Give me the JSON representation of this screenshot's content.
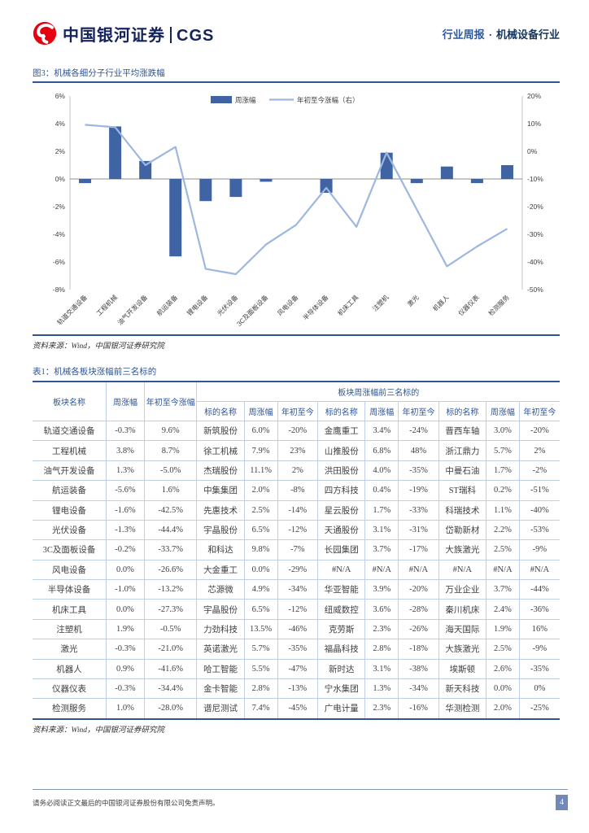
{
  "header": {
    "logo_text": "中国银河证券",
    "logo_suffix": "CGS",
    "report_type": "行业周报",
    "separator": "·",
    "industry": "机械设备行业"
  },
  "figure": {
    "title": "图3：机械各细分子行业平均涨跌幅",
    "source": "资料来源：Wind，中国银河证券研究院"
  },
  "chart_data": {
    "type": "bar",
    "categories": [
      "轨道交通设备",
      "工程机械",
      "油气开发设备",
      "航运装备",
      "锂电设备",
      "光伏设备",
      "3C及面板设备",
      "风电设备",
      "半导体设备",
      "机床工具",
      "注塑机",
      "激光",
      "机器人",
      "仪器仪表",
      "检测服务"
    ],
    "series": [
      {
        "name": "周涨幅",
        "type": "bar",
        "axis": "left",
        "values": [
          -0.3,
          3.8,
          1.3,
          -5.6,
          -1.6,
          -1.3,
          -0.2,
          0.0,
          -1.0,
          0.0,
          1.9,
          -0.3,
          0.9,
          -0.3,
          1.0
        ],
        "color": "#3f63a3"
      },
      {
        "name": "年初至今涨幅（右）",
        "type": "line",
        "axis": "right",
        "values": [
          9.6,
          8.7,
          -5.0,
          1.6,
          -42.5,
          -44.4,
          -33.7,
          -26.6,
          -13.2,
          -27.3,
          -0.5,
          -21.0,
          -41.6,
          -34.4,
          -28.0
        ],
        "color": "#9db7e0"
      }
    ],
    "title": "机械各细分子行业平均涨跌幅",
    "xlabel": "",
    "ylabel": "",
    "left_axis": {
      "min": -8,
      "max": 6,
      "step": 2,
      "suffix": "%"
    },
    "right_axis": {
      "min": -50,
      "max": 20,
      "step": 10,
      "suffix": "%"
    },
    "legend_position": "top",
    "grid": false
  },
  "table": {
    "title": "表1：机械各板块涨幅前三名标的",
    "source": "资料来源：Wind，中国银河证券研究院",
    "group_header": "板块周涨幅前三名标的",
    "col_headers": [
      "板块名称",
      "周涨幅",
      "年初至今涨幅"
    ],
    "sub_headers": [
      "标的名称",
      "周涨幅",
      "年初至今"
    ],
    "rows": [
      [
        "轨道交通设备",
        "-0.3%",
        "9.6%",
        "新筑股份",
        "6.0%",
        "-20%",
        "金鹰重工",
        "3.4%",
        "-24%",
        "晋西车轴",
        "3.0%",
        "-20%"
      ],
      [
        "工程机械",
        "3.8%",
        "8.7%",
        "徐工机械",
        "7.9%",
        "23%",
        "山推股份",
        "6.8%",
        "48%",
        "浙江鼎力",
        "5.7%",
        "2%"
      ],
      [
        "油气开发设备",
        "1.3%",
        "-5.0%",
        "杰瑞股份",
        "11.1%",
        "2%",
        "洪田股份",
        "4.0%",
        "-35%",
        "中曼石油",
        "1.7%",
        "-2%"
      ],
      [
        "航运装备",
        "-5.6%",
        "1.6%",
        "中集集团",
        "2.0%",
        "-8%",
        "四方科技",
        "0.4%",
        "-19%",
        "ST瑞科",
        "0.2%",
        "-51%"
      ],
      [
        "锂电设备",
        "-1.6%",
        "-42.5%",
        "先惠技术",
        "2.5%",
        "-14%",
        "星云股份",
        "1.7%",
        "-33%",
        "科瑞技术",
        "1.1%",
        "-40%"
      ],
      [
        "光伏设备",
        "-1.3%",
        "-44.4%",
        "宇晶股份",
        "6.5%",
        "-12%",
        "天通股份",
        "3.1%",
        "-31%",
        "岱勒新材",
        "2.2%",
        "-53%"
      ],
      [
        "3C及面板设备",
        "-0.2%",
        "-33.7%",
        "和科达",
        "9.8%",
        "-7%",
        "长园集团",
        "3.7%",
        "-17%",
        "大族激光",
        "2.5%",
        "-9%"
      ],
      [
        "风电设备",
        "0.0%",
        "-26.6%",
        "大金重工",
        "0.0%",
        "-29%",
        "#N/A",
        "#N/A",
        "#N/A",
        "#N/A",
        "#N/A",
        "#N/A"
      ],
      [
        "半导体设备",
        "-1.0%",
        "-13.2%",
        "芯源微",
        "4.9%",
        "-34%",
        "华亚智能",
        "3.9%",
        "-20%",
        "万业企业",
        "3.7%",
        "-44%"
      ],
      [
        "机床工具",
        "0.0%",
        "-27.3%",
        "宇晶股份",
        "6.5%",
        "-12%",
        "纽威数控",
        "3.6%",
        "-28%",
        "秦川机床",
        "2.4%",
        "-36%"
      ],
      [
        "注塑机",
        "1.9%",
        "-0.5%",
        "力劲科技",
        "13.5%",
        "-46%",
        "克劳斯",
        "2.3%",
        "-26%",
        "海天国际",
        "1.9%",
        "16%"
      ],
      [
        "激光",
        "-0.3%",
        "-21.0%",
        "英诺激光",
        "5.7%",
        "-35%",
        "福晶科技",
        "2.8%",
        "-18%",
        "大族激光",
        "2.5%",
        "-9%"
      ],
      [
        "机器人",
        "0.9%",
        "-41.6%",
        "哈工智能",
        "5.5%",
        "-47%",
        "新时达",
        "3.1%",
        "-38%",
        "埃斯顿",
        "2.6%",
        "-35%"
      ],
      [
        "仪器仪表",
        "-0.3%",
        "-34.4%",
        "金卡智能",
        "2.8%",
        "-13%",
        "宁水集团",
        "1.3%",
        "-34%",
        "新天科技",
        "0.0%",
        "0%"
      ],
      [
        "检测服务",
        "1.0%",
        "-28.0%",
        "谱尼测试",
        "7.4%",
        "-45%",
        "广电计量",
        "2.3%",
        "-16%",
        "华测检测",
        "2.0%",
        "-25%"
      ]
    ]
  },
  "footer": {
    "disclaimer": "请务必阅读正文最后的中国银河证券股份有限公司免责声明。",
    "page_number": "4"
  },
  "colors": {
    "accent_blue": "#2f5597",
    "bar_blue": "#3f63a3",
    "line_blue": "#9db7e0",
    "logo_red": "#e60012",
    "table_border": "#bdd0e8",
    "page_badge": "#7289b7"
  }
}
